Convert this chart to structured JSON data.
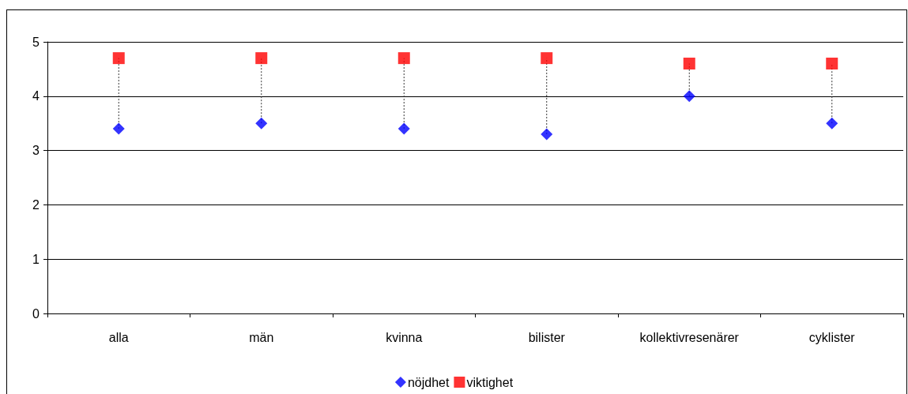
{
  "chart_data": {
    "type": "scatter",
    "categories": [
      "alla",
      "män",
      "kvinna",
      "bilister",
      "kollektivresenärer",
      "cyklister"
    ],
    "series": [
      {
        "name": "nöjdhet",
        "color": "#0000ff",
        "marker": "diamond",
        "values": [
          3.4,
          3.5,
          3.4,
          3.3,
          4.0,
          3.5
        ]
      },
      {
        "name": "viktighet",
        "color": "#ff0000",
        "marker": "square",
        "values": [
          4.7,
          4.7,
          4.7,
          4.7,
          4.6,
          4.6
        ]
      }
    ],
    "ylim": [
      0,
      5
    ],
    "yticks": [
      0,
      1,
      2,
      3,
      4,
      5
    ],
    "grid": "y",
    "legend": "bottom"
  }
}
